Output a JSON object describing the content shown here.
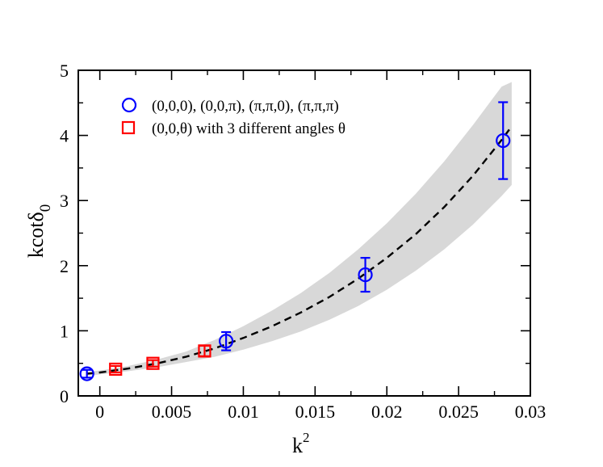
{
  "chart_data": {
    "type": "scatter",
    "title": "",
    "xlabel": "k",
    "xlabel_superscript": "2",
    "ylabel": "kcotδ",
    "ylabel_subscript": "0",
    "xlim": [
      -0.0015,
      0.03
    ],
    "ylim": [
      0,
      5
    ],
    "x_ticks": [
      0,
      0.005,
      0.01,
      0.015,
      0.02,
      0.025,
      0.03
    ],
    "x_tick_labels": [
      "0",
      "0.005",
      "0.01",
      "0.015",
      "0.02",
      "0.025",
      "0.03"
    ],
    "y_ticks": [
      0,
      1,
      2,
      3,
      4,
      5
    ],
    "y_tick_labels": [
      "0",
      "1",
      "2",
      "3",
      "4",
      "5"
    ],
    "grid": false,
    "legend_position": "top-left",
    "series": [
      {
        "name": "(0,0,0), (0,0,π), (π,π,0), (π,π,π)",
        "marker": "circle",
        "color": "#0000ff",
        "points": [
          {
            "x": -0.0009,
            "y": 0.34,
            "err": 0.06
          },
          {
            "x": 0.0088,
            "y": 0.84,
            "err": 0.14
          },
          {
            "x": 0.0185,
            "y": 1.86,
            "err": 0.26
          },
          {
            "x": 0.0281,
            "y": 3.92,
            "err": 0.59
          }
        ]
      },
      {
        "name": "(0,0,θ) with 3 different angles θ",
        "marker": "square",
        "color": "#ff0000",
        "points": [
          {
            "x": 0.0011,
            "y": 0.41,
            "err": 0.05
          },
          {
            "x": 0.0037,
            "y": 0.5,
            "err": 0.05
          },
          {
            "x": 0.0073,
            "y": 0.69,
            "err": 0.08
          }
        ]
      }
    ],
    "fit": {
      "name": "fit curve",
      "style": "dashed",
      "color": "#000000",
      "band_color": "#d8d8d8",
      "x": [
        -0.0009,
        0.0,
        0.002,
        0.004,
        0.006,
        0.008,
        0.01,
        0.012,
        0.014,
        0.016,
        0.018,
        0.02,
        0.022,
        0.024,
        0.026,
        0.028,
        0.0287
      ],
      "y": [
        0.34,
        0.36,
        0.42,
        0.5,
        0.6,
        0.73,
        0.89,
        1.07,
        1.28,
        1.52,
        1.8,
        2.12,
        2.48,
        2.9,
        3.38,
        3.93,
        4.14
      ],
      "band_lower": [
        0.31,
        0.33,
        0.38,
        0.44,
        0.52,
        0.6,
        0.71,
        0.84,
        0.99,
        1.17,
        1.38,
        1.63,
        1.92,
        2.25,
        2.63,
        3.07,
        3.24
      ],
      "band_upper": [
        0.37,
        0.39,
        0.46,
        0.56,
        0.68,
        0.86,
        1.07,
        1.31,
        1.58,
        1.89,
        2.25,
        2.65,
        3.1,
        3.6,
        4.16,
        4.75,
        4.82
      ]
    }
  }
}
